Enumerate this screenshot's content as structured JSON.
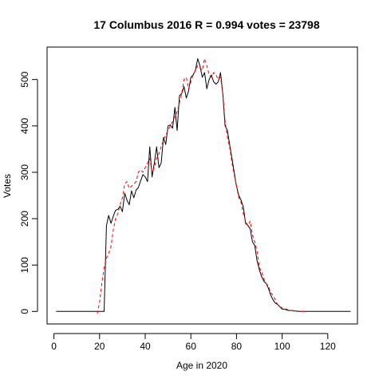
{
  "chart_data": {
    "type": "line",
    "title": "17 Columbus 2016 R = 0.994 votes = 23798",
    "xlabel": "Age in 2020",
    "ylabel": "Votes",
    "xlim": [
      -3,
      133
    ],
    "ylim": [
      -27,
      570
    ],
    "xticks": [
      0,
      20,
      40,
      60,
      80,
      100,
      120
    ],
    "yticks": [
      0,
      100,
      200,
      300,
      400,
      500
    ],
    "grid": false,
    "series": [
      {
        "style": "solid",
        "color": "#000000",
        "x": [
          1,
          2,
          3,
          4,
          5,
          6,
          7,
          8,
          9,
          10,
          11,
          12,
          13,
          14,
          15,
          16,
          17,
          18,
          19,
          20,
          21,
          22,
          23,
          24,
          25,
          26,
          27,
          28,
          29,
          30,
          31,
          32,
          33,
          34,
          35,
          36,
          37,
          38,
          39,
          40,
          41,
          42,
          43,
          44,
          45,
          46,
          47,
          48,
          49,
          50,
          51,
          52,
          53,
          54,
          55,
          56,
          57,
          58,
          59,
          60,
          61,
          62,
          63,
          64,
          65,
          66,
          67,
          68,
          69,
          70,
          71,
          72,
          73,
          74,
          75,
          76,
          77,
          78,
          79,
          80,
          81,
          82,
          83,
          84,
          85,
          86,
          87,
          88,
          89,
          90,
          91,
          92,
          93,
          94,
          95,
          96,
          97,
          98,
          99,
          100,
          101,
          102,
          103,
          104,
          105,
          106,
          107,
          108,
          109,
          110,
          111,
          112,
          113,
          114,
          115,
          116,
          117,
          118,
          119,
          120,
          121,
          122,
          123,
          124,
          125,
          126,
          127,
          128,
          129,
          130
        ],
        "y": [
          0,
          0,
          0,
          0,
          0,
          0,
          0,
          0,
          0,
          0,
          0,
          0,
          0,
          0,
          0,
          0,
          0,
          0,
          0,
          0,
          0,
          0,
          185,
          207,
          190,
          205,
          218,
          220,
          227,
          215,
          255,
          240,
          230,
          260,
          245,
          262,
          267,
          282,
          295,
          290,
          280,
          355,
          290,
          320,
          355,
          310,
          320,
          375,
          360,
          400,
          402,
          395,
          440,
          390,
          465,
          470,
          485,
          460,
          475,
          505,
          510,
          520,
          545,
          530,
          505,
          515,
          480,
          500,
          510,
          495,
          490,
          495,
          515,
          470,
          400,
          390,
          360,
          330,
          300,
          270,
          250,
          240,
          225,
          190,
          185,
          178,
          150,
          142,
          110,
          90,
          75,
          65,
          60,
          50,
          35,
          25,
          18,
          15,
          10,
          5,
          5,
          3,
          2,
          2,
          1,
          1,
          0,
          0,
          0,
          0,
          0,
          0,
          0,
          0,
          0,
          0,
          0,
          0,
          0,
          0,
          0,
          0,
          0,
          0,
          0,
          0,
          0,
          0,
          0,
          0
        ]
      },
      {
        "style": "dashed",
        "color": "#ff0000",
        "x": [
          19,
          20,
          21,
          22,
          23,
          24,
          25,
          26,
          27,
          28,
          29,
          30,
          31,
          32,
          33,
          34,
          35,
          36,
          37,
          38,
          39,
          40,
          41,
          42,
          43,
          44,
          45,
          46,
          47,
          48,
          49,
          50,
          51,
          52,
          53,
          54,
          55,
          56,
          57,
          58,
          59,
          60,
          61,
          62,
          63,
          64,
          65,
          66,
          67,
          68,
          69,
          70,
          71,
          72,
          73,
          74,
          75,
          76,
          77,
          78,
          79,
          80,
          81,
          82,
          83,
          84,
          85,
          86,
          87,
          88,
          89,
          90,
          91,
          92,
          93,
          94,
          95,
          96,
          97,
          98,
          99,
          100,
          101,
          102,
          103,
          104,
          105,
          106,
          107,
          108,
          109,
          110
        ],
        "y": [
          -5,
          20,
          60,
          95,
          115,
          125,
          140,
          175,
          200,
          210,
          230,
          245,
          275,
          280,
          265,
          270,
          275,
          280,
          300,
          305,
          300,
          310,
          320,
          330,
          300,
          310,
          330,
          340,
          355,
          370,
          380,
          390,
          400,
          410,
          420,
          430,
          450,
          470,
          500,
          505,
          480,
          495,
          510,
          520,
          530,
          525,
          520,
          545,
          530,
          510,
          505,
          515,
          510,
          500,
          505,
          470,
          410,
          375,
          355,
          320,
          295,
          270,
          245,
          235,
          210,
          195,
          185,
          195,
          165,
          150,
          130,
          95,
          85,
          70,
          60,
          55,
          40,
          35,
          25,
          15,
          10,
          8,
          5,
          5,
          3,
          2,
          2,
          1,
          1,
          0,
          0,
          0
        ]
      }
    ]
  }
}
